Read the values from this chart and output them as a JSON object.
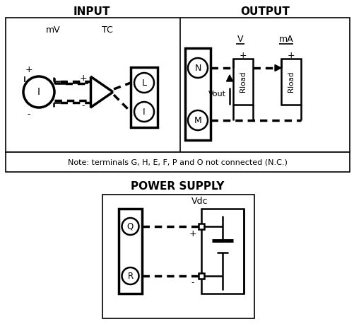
{
  "title_input": "INPUT",
  "title_output": "OUTPUT",
  "title_power": "POWER SUPPLY",
  "note_text": "Note: terminals G, H, E, F, P and O not connected (N.C.)",
  "bg_color": "#ffffff",
  "line_color": "#000000",
  "figsize": [
    5.02,
    4.65
  ],
  "dpi": 100
}
